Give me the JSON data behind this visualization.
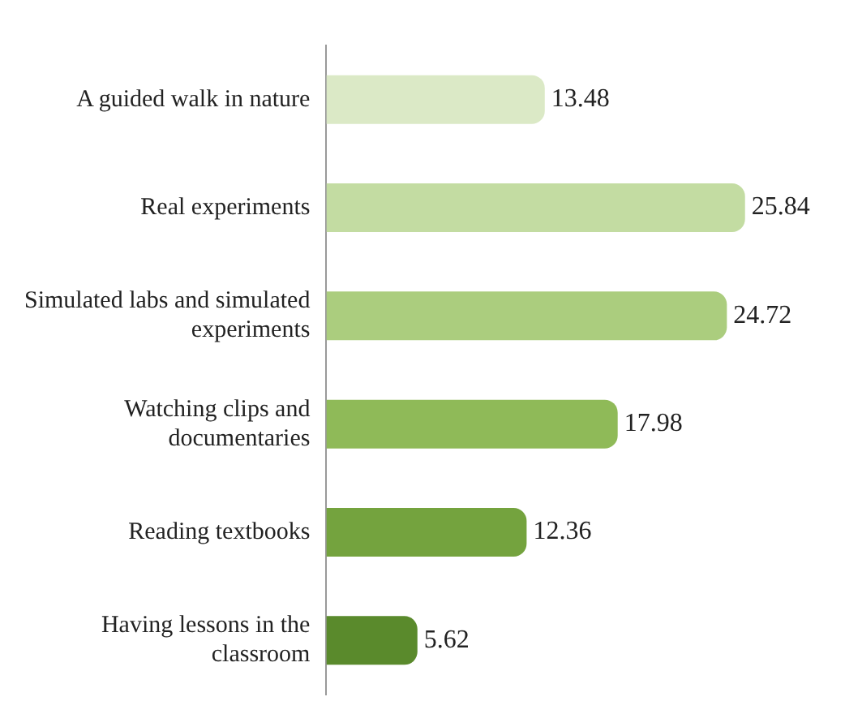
{
  "chart_data": {
    "type": "bar",
    "orientation": "horizontal",
    "categories": [
      "A guided walk in nature",
      "Real experiments",
      "Simulated labs and simulated experiments",
      "Watching clips and documentaries",
      "Reading textbooks",
      "Having lessons in the classroom"
    ],
    "values": [
      13.48,
      25.84,
      24.72,
      17.98,
      12.36,
      5.62
    ],
    "colors": [
      "#dbe9c6",
      "#c3dca2",
      "#abcd7e",
      "#8fba58",
      "#74a33e",
      "#5a8a2c"
    ],
    "data_labels": true
  }
}
